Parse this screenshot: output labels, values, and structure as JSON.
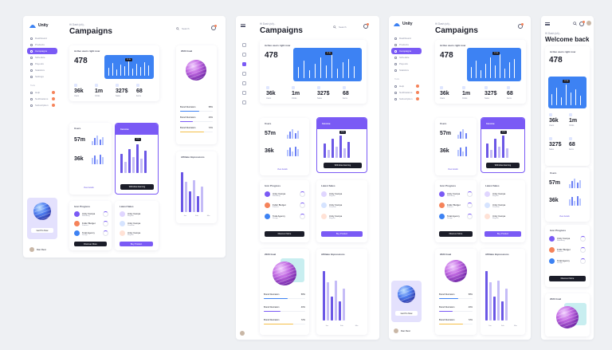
{
  "colors": {
    "accent": "#7a5af5",
    "chart_blue": "#3d82f3",
    "warn": "#f5835a",
    "dark": "#1b1d29",
    "bg": "#eef0f3"
  },
  "app": {
    "name": "Unity",
    "greeting": "Hi Dash (sh)..",
    "greeting_mobile": "Hi Dash (sh)..",
    "page_title": "Campaigns",
    "mobile_title": "Welcome back"
  },
  "sidebar": {
    "items": [
      "Dashboard",
      "Products",
      "Campaigns",
      "Schedule",
      "Payouts",
      "Statistics",
      "Settings"
    ],
    "section": "Tools",
    "tools": [
      "Help",
      "Notifications",
      "Subscription"
    ]
  },
  "search": {
    "label": "Search"
  },
  "campaign": {
    "header": "Active users right now",
    "value": "478",
    "tooltip": "11.9k"
  },
  "stats": [
    {
      "value": "36k",
      "label": "Users"
    },
    {
      "value": "1m",
      "label": "Clicks"
    },
    {
      "value": "327$",
      "label": "Sales"
    },
    {
      "value": "68",
      "label": "Items"
    }
  ],
  "users": {
    "label": "Users",
    "value1": "57m",
    "value2": "36k",
    "link": "View details"
  },
  "income": {
    "label": "Income",
    "tooltip": "45%",
    "button": "Withdraw Earning"
  },
  "product": {
    "label": "Icon Progress",
    "button": "Discover More",
    "rows": [
      {
        "name": "Unity Campa",
        "sub": "Marketing",
        "pct": "52%"
      },
      {
        "name": "Fuller Budget",
        "sub": "Finance",
        "pct": "71%"
      },
      {
        "name": "Total Agency",
        "sub": "Design",
        "pct": "44%"
      }
    ]
  },
  "latest": {
    "label": "Latest Sales",
    "button": "Buy Product",
    "rows": [
      {
        "name": "Unity Campa",
        "sub": "Regular"
      },
      {
        "name": "Unity Campa",
        "sub": "Premium"
      },
      {
        "name": "Unity Campa",
        "sub": "Regular"
      }
    ]
  },
  "goal": {
    "label": "2023 Goal",
    "rows": [
      {
        "name": "Brand Illustration",
        "pct": "58%",
        "frac": 0.58,
        "color": "#3d82f3"
      },
      {
        "name": "Brand Illustration",
        "pct": "40%",
        "frac": 0.4,
        "color": "#7a5af5"
      },
      {
        "name": "Brand Illustration",
        "pct": "72%",
        "frac": 0.72,
        "color": "#f5c04a"
      }
    ]
  },
  "impressions": {
    "label": "Affiliate Impressions",
    "axis": [
      "Jan",
      "Feb",
      "Mar"
    ]
  },
  "upsell": {
    "button": "Get Pro Now"
  },
  "profile": {
    "name": "Dan Rest",
    "role": "Admin"
  }
}
